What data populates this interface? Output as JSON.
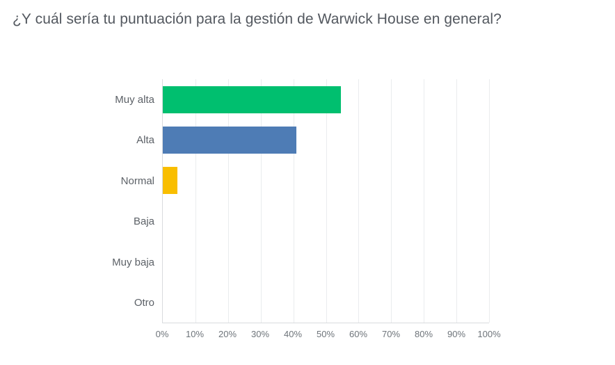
{
  "chart_data": {
    "type": "bar",
    "orientation": "horizontal",
    "title": "¿Y cuál sería tu puntuación para la gestión de Warwick House en general?",
    "categories": [
      "Muy alta",
      "Alta",
      "Normal",
      "Baja",
      "Muy baja",
      "Otro"
    ],
    "values": [
      54.55,
      40.91,
      4.55,
      0,
      0,
      0
    ],
    "value_unit": "%",
    "xlabel": "",
    "ylabel": "",
    "xlim": [
      0,
      100
    ],
    "x_tick_labels": [
      "0%",
      "10%",
      "20%",
      "30%",
      "40%",
      "50%",
      "60%",
      "70%",
      "80%",
      "90%",
      "100%"
    ],
    "bar_colors": [
      "#00bf6f",
      "#4e7cb5",
      "#f9be00"
    ],
    "grid": "vertical-only",
    "legend": "none"
  }
}
